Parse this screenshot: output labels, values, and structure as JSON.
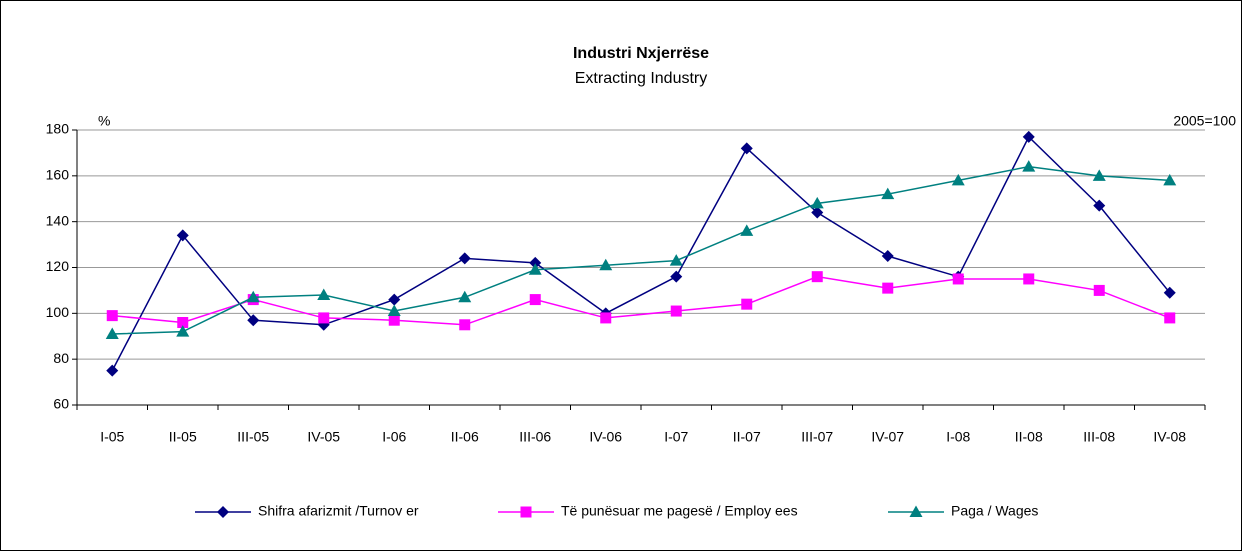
{
  "chart_data": {
    "type": "line",
    "title": "Industri Nxjerrëse",
    "subtitle": "Extracting Industry",
    "y_label": "%",
    "annotation": "2005=100",
    "categories": [
      "I-05",
      "II-05",
      "III-05",
      "IV-05",
      "I-06",
      "II-06",
      "III-06",
      "IV-06",
      "I-07",
      "II-07",
      "III-07",
      "IV-07",
      "I-08",
      "II-08",
      "III-08",
      "IV-08"
    ],
    "series": [
      {
        "name": "Shifra afarizmit /Turnov er",
        "color": "#000080",
        "marker": "diamond",
        "values": [
          75,
          134,
          97,
          95,
          106,
          124,
          122,
          100,
          116,
          172,
          144,
          125,
          116,
          177,
          147,
          109
        ]
      },
      {
        "name": "Të punësuar me pagesë / Employ ees",
        "color": "#ff00ff",
        "marker": "square",
        "values": [
          99,
          96,
          106,
          98,
          97,
          95,
          106,
          98,
          101,
          104,
          116,
          111,
          115,
          115,
          110,
          98
        ]
      },
      {
        "name": "Paga / Wages",
        "color": "#008080",
        "marker": "triangle",
        "values": [
          91,
          92,
          107,
          108,
          101,
          107,
          119,
          121,
          123,
          136,
          148,
          152,
          158,
          164,
          160,
          158
        ]
      }
    ],
    "ylim": [
      60,
      180
    ],
    "yticks": [
      60,
      80,
      100,
      120,
      140,
      160,
      180
    ],
    "grid": true,
    "legend": "bottom"
  }
}
